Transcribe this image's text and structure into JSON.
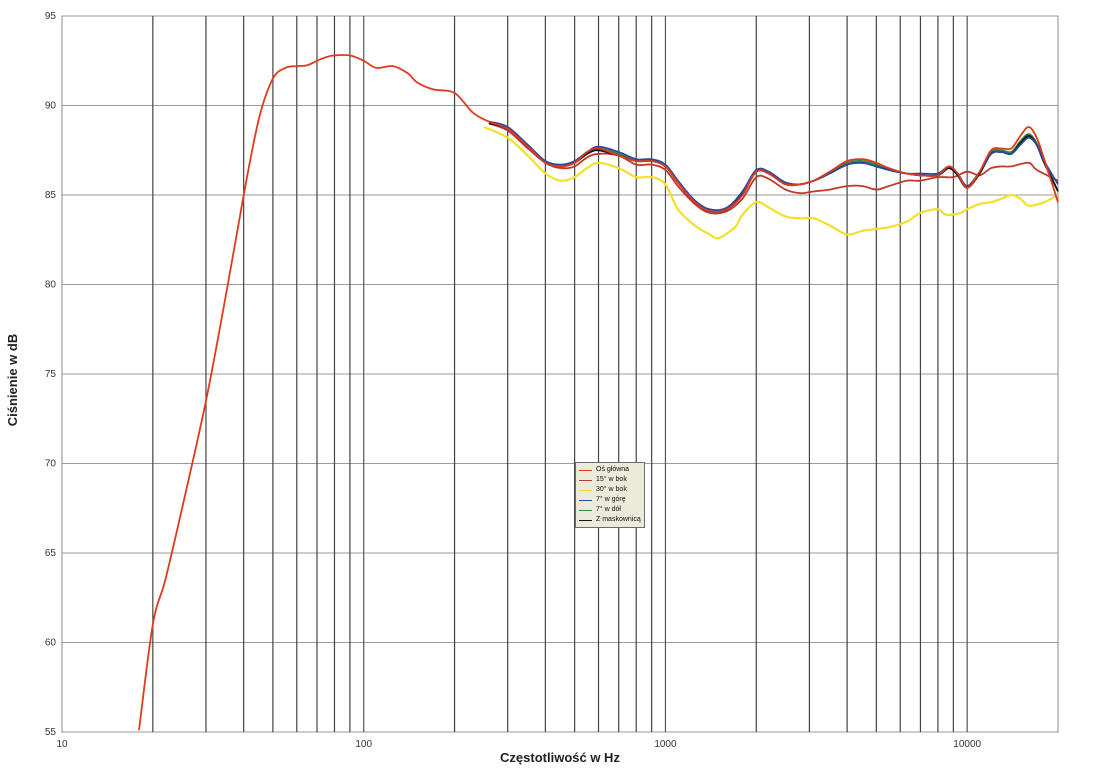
{
  "chart_data": {
    "type": "line",
    "xlabel": "Częstotliwość w Hz",
    "ylabel": "Ciśnienie w dB",
    "x_scale": "log",
    "xlim": [
      10,
      20000
    ],
    "ylim": [
      55,
      95
    ],
    "x_ticks": [
      10,
      100,
      1000,
      10000
    ],
    "x_tick_labels": [
      "10",
      "100",
      "1000",
      "10000"
    ],
    "y_ticks": [
      55,
      60,
      65,
      70,
      75,
      80,
      85,
      90,
      95
    ],
    "grid": true,
    "legend_position": "center",
    "series": [
      {
        "name": "Oś główna",
        "color": "#e03a1e",
        "points": [
          [
            18,
            55.1
          ],
          [
            20,
            61
          ],
          [
            22,
            63.5
          ],
          [
            25,
            67.5
          ],
          [
            30,
            73.5
          ],
          [
            35,
            79.5
          ],
          [
            40,
            85
          ],
          [
            45,
            89.3
          ],
          [
            50,
            91.5
          ],
          [
            55,
            92.1
          ],
          [
            60,
            92.2
          ],
          [
            65,
            92.25
          ],
          [
            70,
            92.5
          ],
          [
            75,
            92.7
          ],
          [
            80,
            92.8
          ],
          [
            90,
            92.8
          ],
          [
            100,
            92.5
          ],
          [
            110,
            92.1
          ],
          [
            125,
            92.2
          ],
          [
            140,
            91.8
          ],
          [
            150,
            91.3
          ],
          [
            170,
            90.9
          ],
          [
            200,
            90.7
          ],
          [
            230,
            89.6
          ],
          [
            260,
            89.1
          ],
          [
            300,
            88.7
          ],
          [
            350,
            87.7
          ],
          [
            400,
            86.8
          ],
          [
            450,
            86.6
          ],
          [
            500,
            86.8
          ],
          [
            550,
            87.4
          ],
          [
            600,
            87.6
          ],
          [
            700,
            87.2
          ],
          [
            800,
            86.9
          ],
          [
            900,
            86.9
          ],
          [
            1000,
            86.6
          ],
          [
            1100,
            85.7
          ],
          [
            1250,
            84.6
          ],
          [
            1400,
            84.1
          ],
          [
            1600,
            84.2
          ],
          [
            1800,
            85
          ],
          [
            2000,
            86.3
          ],
          [
            2200,
            86.2
          ],
          [
            2500,
            85.6
          ],
          [
            2800,
            85.6
          ],
          [
            3100,
            85.8
          ],
          [
            3500,
            86.3
          ],
          [
            4000,
            86.9
          ],
          [
            4500,
            87
          ],
          [
            5000,
            86.8
          ],
          [
            5500,
            86.5
          ],
          [
            6300,
            86.2
          ],
          [
            7000,
            86.1
          ],
          [
            8000,
            86.1
          ],
          [
            8700,
            86.6
          ],
          [
            9300,
            86.2
          ],
          [
            10000,
            85.4
          ],
          [
            11000,
            86.3
          ],
          [
            12000,
            87.5
          ],
          [
            13000,
            87.6
          ],
          [
            14000,
            87.6
          ],
          [
            15000,
            88.3
          ],
          [
            16000,
            88.8
          ],
          [
            17000,
            88.2
          ],
          [
            18000,
            87
          ],
          [
            20000,
            84.6
          ]
        ]
      },
      {
        "name": "15° w bok",
        "color": "#c0392b",
        "points": [
          [
            260,
            89
          ],
          [
            300,
            88.6
          ],
          [
            350,
            87.6
          ],
          [
            400,
            86.8
          ],
          [
            450,
            86.5
          ],
          [
            500,
            86.6
          ],
          [
            550,
            87.1
          ],
          [
            600,
            87.3
          ],
          [
            700,
            87.2
          ],
          [
            800,
            86.7
          ],
          [
            900,
            86.7
          ],
          [
            1000,
            86.4
          ],
          [
            1100,
            85.5
          ],
          [
            1250,
            84.5
          ],
          [
            1400,
            84
          ],
          [
            1600,
            84.1
          ],
          [
            1800,
            84.8
          ],
          [
            2000,
            86
          ],
          [
            2200,
            85.9
          ],
          [
            2500,
            85.3
          ],
          [
            2800,
            85.1
          ],
          [
            3100,
            85.2
          ],
          [
            3500,
            85.3
          ],
          [
            4000,
            85.5
          ],
          [
            4500,
            85.5
          ],
          [
            5000,
            85.3
          ],
          [
            5500,
            85.5
          ],
          [
            6300,
            85.8
          ],
          [
            7000,
            85.8
          ],
          [
            8000,
            86
          ],
          [
            9000,
            86
          ],
          [
            10000,
            86.3
          ],
          [
            11000,
            86.1
          ],
          [
            12000,
            86.5
          ],
          [
            13000,
            86.6
          ],
          [
            14000,
            86.6
          ],
          [
            16000,
            86.8
          ],
          [
            17000,
            86.4
          ],
          [
            20000,
            85.8
          ]
        ]
      },
      {
        "name": "30° w bok",
        "color": "#f2e02a",
        "points": [
          [
            250,
            88.8
          ],
          [
            300,
            88.2
          ],
          [
            350,
            87.2
          ],
          [
            400,
            86.2
          ],
          [
            450,
            85.8
          ],
          [
            500,
            86
          ],
          [
            550,
            86.5
          ],
          [
            600,
            86.8
          ],
          [
            700,
            86.5
          ],
          [
            800,
            86
          ],
          [
            900,
            86
          ],
          [
            1000,
            85.6
          ],
          [
            1100,
            84.2
          ],
          [
            1250,
            83.3
          ],
          [
            1400,
            82.8
          ],
          [
            1500,
            82.6
          ],
          [
            1700,
            83.2
          ],
          [
            1800,
            83.9
          ],
          [
            2000,
            84.6
          ],
          [
            2200,
            84.3
          ],
          [
            2500,
            83.8
          ],
          [
            2800,
            83.7
          ],
          [
            3100,
            83.7
          ],
          [
            3500,
            83.3
          ],
          [
            4000,
            82.8
          ],
          [
            4500,
            83
          ],
          [
            5000,
            83.1
          ],
          [
            5500,
            83.2
          ],
          [
            6300,
            83.5
          ],
          [
            7000,
            84
          ],
          [
            8000,
            84.2
          ],
          [
            8500,
            83.9
          ],
          [
            9500,
            84
          ],
          [
            10000,
            84.2
          ],
          [
            11000,
            84.5
          ],
          [
            12000,
            84.6
          ],
          [
            13000,
            84.8
          ],
          [
            14000,
            85
          ],
          [
            15000,
            84.8
          ],
          [
            16000,
            84.4
          ],
          [
            18000,
            84.6
          ],
          [
            20000,
            85
          ]
        ]
      },
      {
        "name": "7° w górę",
        "color": "#2a4aa0",
        "points": [
          [
            260,
            89.1
          ],
          [
            300,
            88.8
          ],
          [
            350,
            87.8
          ],
          [
            400,
            86.9
          ],
          [
            450,
            86.7
          ],
          [
            500,
            86.9
          ],
          [
            550,
            87.4
          ],
          [
            600,
            87.7
          ],
          [
            700,
            87.4
          ],
          [
            800,
            87
          ],
          [
            900,
            87
          ],
          [
            1000,
            86.7
          ],
          [
            1100,
            85.8
          ],
          [
            1250,
            84.7
          ],
          [
            1400,
            84.2
          ],
          [
            1600,
            84.3
          ],
          [
            1800,
            85.2
          ],
          [
            2000,
            86.4
          ],
          [
            2200,
            86.3
          ],
          [
            2500,
            85.7
          ],
          [
            2800,
            85.6
          ],
          [
            3100,
            85.8
          ],
          [
            3500,
            86.2
          ],
          [
            4000,
            86.7
          ],
          [
            4500,
            86.8
          ],
          [
            5000,
            86.6
          ],
          [
            5500,
            86.4
          ],
          [
            6300,
            86.2
          ],
          [
            7000,
            86.2
          ],
          [
            8000,
            86.2
          ],
          [
            8700,
            86.6
          ],
          [
            9300,
            86.2
          ],
          [
            10000,
            85.5
          ],
          [
            11000,
            86.3
          ],
          [
            12000,
            87.3
          ],
          [
            13000,
            87.4
          ],
          [
            14000,
            87.3
          ],
          [
            15000,
            87.8
          ],
          [
            16000,
            88.2
          ],
          [
            17000,
            87.8
          ],
          [
            18000,
            86.9
          ],
          [
            20000,
            85.6
          ]
        ]
      },
      {
        "name": "7° w dół",
        "color": "#2e8b3a",
        "points": [
          [
            260,
            89
          ],
          [
            300,
            88.7
          ],
          [
            350,
            87.7
          ],
          [
            400,
            86.8
          ],
          [
            450,
            86.6
          ],
          [
            500,
            86.8
          ],
          [
            550,
            87.3
          ],
          [
            600,
            87.6
          ],
          [
            700,
            87.3
          ],
          [
            800,
            86.9
          ],
          [
            900,
            86.9
          ],
          [
            1000,
            86.6
          ],
          [
            1100,
            85.7
          ],
          [
            1250,
            84.6
          ],
          [
            1400,
            84.1
          ],
          [
            1600,
            84.2
          ],
          [
            1800,
            85.1
          ],
          [
            2000,
            86.3
          ],
          [
            2200,
            86.2
          ],
          [
            2500,
            85.6
          ],
          [
            2800,
            85.6
          ],
          [
            3100,
            85.8
          ],
          [
            3500,
            86.2
          ],
          [
            4000,
            86.8
          ],
          [
            4500,
            86.9
          ],
          [
            5000,
            86.7
          ],
          [
            5500,
            86.4
          ],
          [
            6300,
            86.2
          ],
          [
            7000,
            86.1
          ],
          [
            8000,
            86.1
          ],
          [
            8700,
            86.5
          ],
          [
            9300,
            86.1
          ],
          [
            10000,
            85.4
          ],
          [
            11000,
            86.3
          ],
          [
            12000,
            87.4
          ],
          [
            13000,
            87.5
          ],
          [
            14000,
            87.4
          ],
          [
            15000,
            88
          ],
          [
            16000,
            88.4
          ],
          [
            17000,
            87.9
          ],
          [
            18000,
            86.9
          ],
          [
            20000,
            85.2
          ]
        ]
      },
      {
        "name": "Z maskownicą",
        "color": "#111111",
        "points": [
          [
            260,
            89
          ],
          [
            300,
            88.7
          ],
          [
            350,
            87.7
          ],
          [
            400,
            86.8
          ],
          [
            450,
            86.6
          ],
          [
            500,
            86.8
          ],
          [
            550,
            87.3
          ],
          [
            600,
            87.5
          ],
          [
            700,
            87.2
          ],
          [
            800,
            86.9
          ],
          [
            900,
            86.9
          ],
          [
            1000,
            86.6
          ],
          [
            1100,
            85.7
          ],
          [
            1250,
            84.6
          ],
          [
            1400,
            84.1
          ],
          [
            1600,
            84.2
          ],
          [
            1800,
            85.1
          ],
          [
            2000,
            86.3
          ],
          [
            2200,
            86.2
          ],
          [
            2500,
            85.6
          ],
          [
            2800,
            85.6
          ],
          [
            3100,
            85.8
          ],
          [
            3500,
            86.2
          ],
          [
            4000,
            86.7
          ],
          [
            4500,
            86.8
          ],
          [
            5000,
            86.6
          ],
          [
            5500,
            86.4
          ],
          [
            6300,
            86.2
          ],
          [
            7000,
            86.1
          ],
          [
            8000,
            86.1
          ],
          [
            8700,
            86.5
          ],
          [
            9300,
            86.1
          ],
          [
            10000,
            85.4
          ],
          [
            11000,
            86.2
          ],
          [
            12000,
            87.3
          ],
          [
            13000,
            87.4
          ],
          [
            14000,
            87.3
          ],
          [
            15000,
            87.9
          ],
          [
            16000,
            88.3
          ],
          [
            17000,
            87.8
          ],
          [
            18000,
            86.8
          ],
          [
            20000,
            85.2
          ]
        ]
      }
    ]
  }
}
